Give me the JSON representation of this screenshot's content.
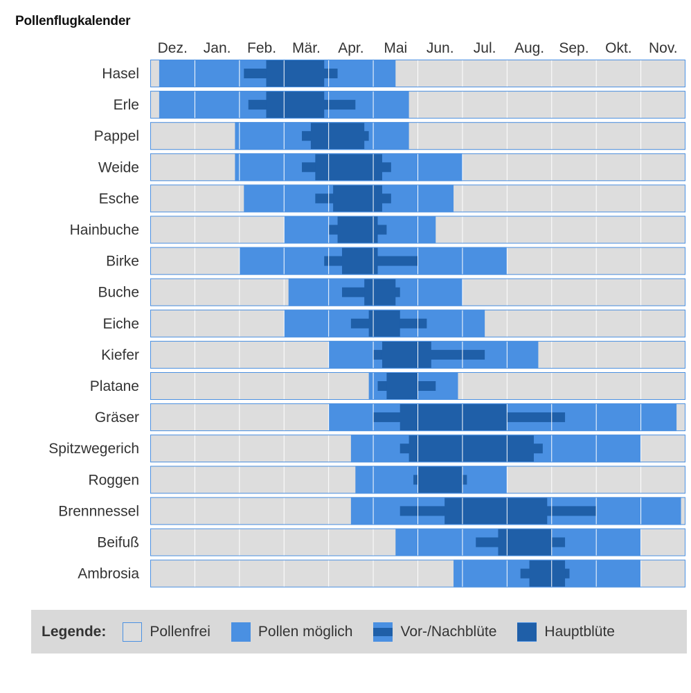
{
  "colors": {
    "free": "#dddddd",
    "possible": "#4a90e2",
    "pre_post": "#1f5fa8",
    "main": "#1f5fa8",
    "grid_line": "#ffffff",
    "row_border": "#4a90e2"
  },
  "chart_data": {
    "type": "table",
    "title": "Pollenflugkalender",
    "months": [
      "Dez.",
      "Jan.",
      "Feb.",
      "Mär.",
      "Apr.",
      "Mai",
      "Jun.",
      "Jul.",
      "Aug.",
      "Sep.",
      "Okt.",
      "Nov."
    ],
    "value_unit": "months since start of December (0 = 1 Dez., 12 = 30 Nov.)",
    "plants": [
      {
        "name": "Hasel",
        "possible": [
          0.2,
          5.5
        ],
        "pre_post": [
          2.1,
          4.2
        ],
        "main": [
          2.6,
          3.9
        ]
      },
      {
        "name": "Erle",
        "possible": [
          0.2,
          5.8
        ],
        "pre_post": [
          2.2,
          4.6
        ],
        "main": [
          2.6,
          3.9
        ]
      },
      {
        "name": "Pappel",
        "possible": [
          1.9,
          5.8
        ],
        "pre_post": [
          3.4,
          4.9
        ],
        "main": [
          3.6,
          4.8
        ]
      },
      {
        "name": "Weide",
        "possible": [
          1.9,
          7.0
        ],
        "pre_post": [
          3.4,
          5.4
        ],
        "main": [
          3.7,
          5.2
        ]
      },
      {
        "name": "Esche",
        "possible": [
          2.1,
          6.8
        ],
        "pre_post": [
          3.7,
          5.4
        ],
        "main": [
          4.1,
          5.2
        ]
      },
      {
        "name": "Hainbuche",
        "possible": [
          3.0,
          6.4
        ],
        "pre_post": [
          4.0,
          5.3
        ],
        "main": [
          4.2,
          5.1
        ]
      },
      {
        "name": "Birke",
        "possible": [
          2.0,
          8.0
        ],
        "pre_post": [
          3.9,
          6.0
        ],
        "main": [
          4.3,
          5.1
        ]
      },
      {
        "name": "Buche",
        "possible": [
          3.1,
          7.0
        ],
        "pre_post": [
          4.3,
          5.6
        ],
        "main": [
          4.8,
          5.5
        ]
      },
      {
        "name": "Eiche",
        "possible": [
          3.0,
          7.5
        ],
        "pre_post": [
          4.5,
          6.2
        ],
        "main": [
          4.9,
          5.6
        ]
      },
      {
        "name": "Kiefer",
        "possible": [
          4.0,
          8.7
        ],
        "pre_post": [
          5.0,
          7.5
        ],
        "main": [
          5.2,
          6.3
        ]
      },
      {
        "name": "Platane",
        "possible": [
          4.9,
          6.9
        ],
        "pre_post": [
          5.1,
          6.4
        ],
        "main": [
          5.3,
          6.0
        ]
      },
      {
        "name": "Gräser",
        "possible": [
          4.0,
          11.8
        ],
        "pre_post": [
          5.0,
          9.3
        ],
        "main": [
          5.6,
          8.0
        ]
      },
      {
        "name": "Spitzwegerich",
        "possible": [
          4.5,
          11.0
        ],
        "pre_post": [
          5.6,
          8.8
        ],
        "main": [
          5.8,
          8.6
        ]
      },
      {
        "name": "Roggen",
        "possible": [
          4.6,
          8.0
        ],
        "pre_post": [
          5.9,
          7.1
        ],
        "main": [
          6.0,
          7.0
        ]
      },
      {
        "name": "Brennnessel",
        "possible": [
          4.5,
          11.9
        ],
        "pre_post": [
          5.6,
          10.0
        ],
        "main": [
          6.6,
          8.9
        ]
      },
      {
        "name": "Beifuß",
        "possible": [
          5.5,
          11.0
        ],
        "pre_post": [
          7.3,
          9.3
        ],
        "main": [
          7.8,
          9.0
        ]
      },
      {
        "name": "Ambrosia",
        "possible": [
          6.8,
          11.0
        ],
        "pre_post": [
          8.3,
          9.4
        ],
        "main": [
          8.5,
          9.3
        ]
      }
    ]
  },
  "legend": {
    "title": "Legende:",
    "items": [
      {
        "key": "free",
        "label": "Pollenfrei"
      },
      {
        "key": "possible",
        "label": "Pollen möglich"
      },
      {
        "key": "pre_post",
        "label": "Vor-/Nachblüte"
      },
      {
        "key": "main",
        "label": "Hauptblüte"
      }
    ]
  }
}
